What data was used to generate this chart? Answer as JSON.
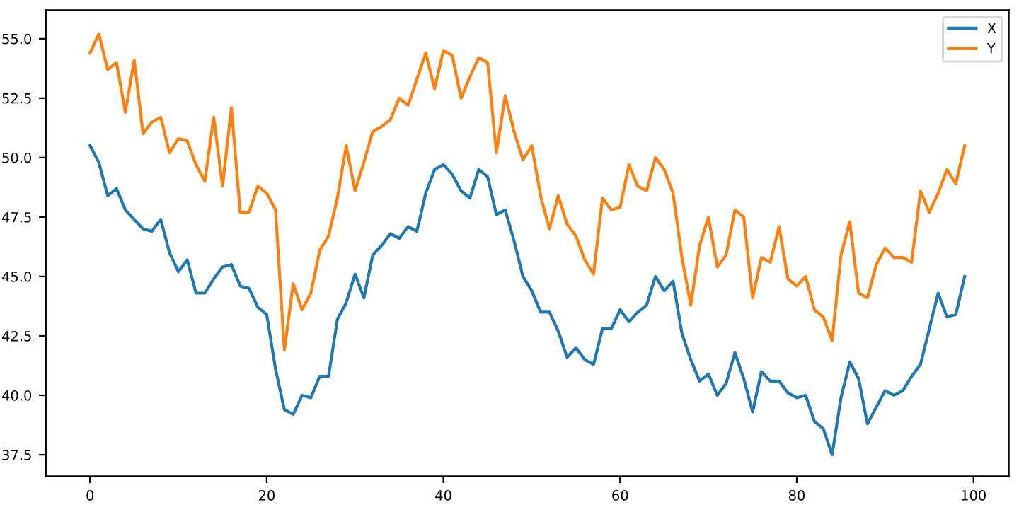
{
  "chart_data": {
    "type": "line",
    "x": [
      0,
      1,
      2,
      3,
      4,
      5,
      6,
      7,
      8,
      9,
      10,
      11,
      12,
      13,
      14,
      15,
      16,
      17,
      18,
      19,
      20,
      21,
      22,
      23,
      24,
      25,
      26,
      27,
      28,
      29,
      30,
      31,
      32,
      33,
      34,
      35,
      36,
      37,
      38,
      39,
      40,
      41,
      42,
      43,
      44,
      45,
      46,
      47,
      48,
      49,
      50,
      51,
      52,
      53,
      54,
      55,
      56,
      57,
      58,
      59,
      60,
      61,
      62,
      63,
      64,
      65,
      66,
      67,
      68,
      69,
      70,
      71,
      72,
      73,
      74,
      75,
      76,
      77,
      78,
      79,
      80,
      81,
      82,
      83,
      84,
      85,
      86,
      87,
      88,
      89,
      90,
      91,
      92,
      93,
      94,
      95,
      96,
      97,
      98,
      99
    ],
    "series": [
      {
        "name": "X",
        "color": "#1f77b4",
        "values": [
          50.5,
          49.8,
          48.4,
          48.7,
          47.8,
          47.4,
          47.0,
          46.9,
          47.4,
          46.0,
          45.2,
          45.7,
          44.3,
          44.3,
          44.9,
          45.4,
          45.5,
          44.6,
          44.5,
          43.7,
          43.4,
          41.1,
          39.4,
          39.2,
          40.0,
          39.9,
          40.8,
          40.8,
          43.2,
          43.9,
          45.1,
          44.1,
          45.9,
          46.3,
          46.8,
          46.6,
          47.1,
          46.9,
          48.5,
          49.5,
          49.7,
          49.3,
          48.6,
          48.3,
          49.5,
          49.2,
          47.6,
          47.8,
          46.5,
          45.0,
          44.4,
          43.5,
          43.5,
          42.7,
          41.6,
          42.0,
          41.5,
          41.3,
          42.8,
          42.8,
          43.6,
          43.1,
          43.5,
          43.8,
          45.0,
          44.4,
          44.8,
          42.6,
          41.5,
          40.6,
          40.9,
          40.0,
          40.5,
          41.8,
          40.7,
          39.3,
          41.0,
          40.6,
          40.6,
          40.1,
          39.9,
          40.0,
          38.9,
          38.6,
          37.5,
          39.9,
          41.4,
          40.7,
          38.8,
          39.5,
          40.2,
          40.0,
          40.2,
          40.8,
          41.3,
          42.8,
          44.3,
          43.3,
          43.4,
          45.0
        ]
      },
      {
        "name": "Y",
        "color": "#ff7f0e",
        "values": [
          54.4,
          55.2,
          53.7,
          54.0,
          51.9,
          54.1,
          51.0,
          51.5,
          51.7,
          50.2,
          50.8,
          50.7,
          49.7,
          49.0,
          51.7,
          48.8,
          52.1,
          47.7,
          47.7,
          48.8,
          48.5,
          47.8,
          41.9,
          44.7,
          43.6,
          44.3,
          46.1,
          46.7,
          48.3,
          50.5,
          48.6,
          49.8,
          51.1,
          51.3,
          51.6,
          52.5,
          52.2,
          53.3,
          54.4,
          52.9,
          54.5,
          54.3,
          52.5,
          53.4,
          54.2,
          54.0,
          50.2,
          52.6,
          51.1,
          49.9,
          50.5,
          48.4,
          47.0,
          48.4,
          47.2,
          46.7,
          45.7,
          45.1,
          48.3,
          47.8,
          47.9,
          49.7,
          48.8,
          48.6,
          50.0,
          49.5,
          48.5,
          45.8,
          43.8,
          46.3,
          47.5,
          45.4,
          45.9,
          47.8,
          47.5,
          44.1,
          45.8,
          45.6,
          47.1,
          44.9,
          44.6,
          45.0,
          43.6,
          43.3,
          42.3,
          45.9,
          47.3,
          44.3,
          44.1,
          45.5,
          46.2,
          45.8,
          45.8,
          45.6,
          48.6,
          47.7,
          48.5,
          49.5,
          48.9,
          50.5
        ]
      }
    ],
    "xlim": [
      -5,
      104
    ],
    "ylim": [
      36.6,
      56.2
    ],
    "xticks": [
      0,
      20,
      40,
      60,
      80,
      100
    ],
    "yticks": [
      {
        "value": 37.5,
        "label": "37.5"
      },
      {
        "value": 40,
        "label": "40.0"
      },
      {
        "value": 42.5,
        "label": "42.5"
      },
      {
        "value": 45,
        "label": "45.0"
      },
      {
        "value": 47.5,
        "label": "47.5"
      },
      {
        "value": 50,
        "label": "50.0"
      },
      {
        "value": 52.5,
        "label": "52.5"
      },
      {
        "value": 55,
        "label": "55.0"
      }
    ],
    "grid": false,
    "legend": "top right"
  }
}
